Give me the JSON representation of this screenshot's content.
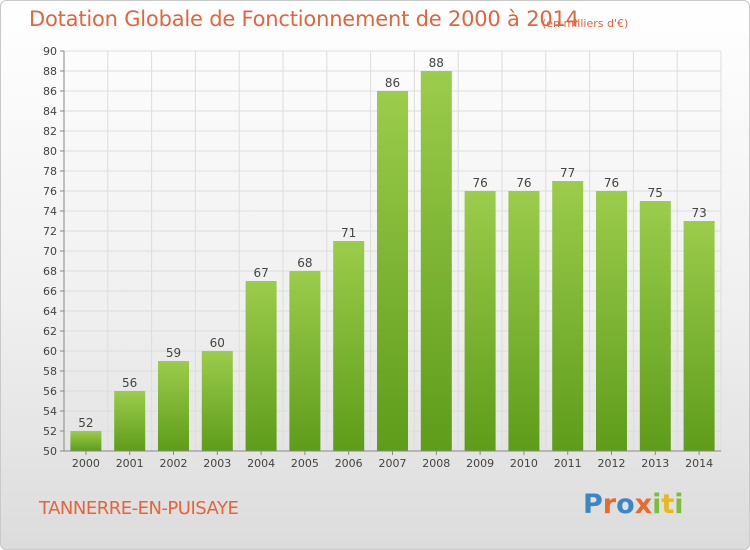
{
  "header": {
    "title": "Dotation Globale de Fonctionnement de 2000 à 2014",
    "units": "(en milliers d'€)"
  },
  "footer": {
    "commune": "TANNERRE-EN-PUISAYE",
    "logo_letters": [
      "P",
      "r",
      "o",
      "x",
      "i",
      "t",
      "i"
    ]
  },
  "colors": {
    "title": "#e4643c",
    "bar_light": "#9ccc4c",
    "bar_dark": "#5e9c1a",
    "axis": "#888888",
    "grid": "#dddddd"
  },
  "chart_data": {
    "type": "bar",
    "title": "Dotation Globale de Fonctionnement de 2000 à 2014",
    "subtitle": "(en milliers d'€)",
    "categories": [
      "2000",
      "2001",
      "2002",
      "2003",
      "2004",
      "2005",
      "2006",
      "2007",
      "2008",
      "2009",
      "2010",
      "2011",
      "2012",
      "2013",
      "2014"
    ],
    "values": [
      52,
      56,
      59,
      60,
      67,
      68,
      71,
      86,
      88,
      76,
      76,
      77,
      76,
      75,
      73
    ],
    "data_labels": [
      "52",
      "56",
      "59",
      "60",
      "67",
      "68",
      "71",
      "86",
      "88",
      "76",
      "76",
      "77",
      "76",
      "75",
      "73"
    ],
    "ylim": [
      50,
      90
    ],
    "yticks": [
      50,
      52,
      54,
      56,
      58,
      60,
      62,
      64,
      66,
      68,
      70,
      72,
      74,
      76,
      78,
      80,
      82,
      84,
      86,
      88,
      90
    ],
    "ytick_labels": [
      "50",
      "52",
      "54",
      "56",
      "58",
      "60",
      "62",
      "64",
      "66",
      "68",
      "70",
      "72",
      "74",
      "76",
      "78",
      "80",
      "82",
      "84",
      "86",
      "88",
      "90"
    ],
    "grid": true,
    "legend": false
  }
}
